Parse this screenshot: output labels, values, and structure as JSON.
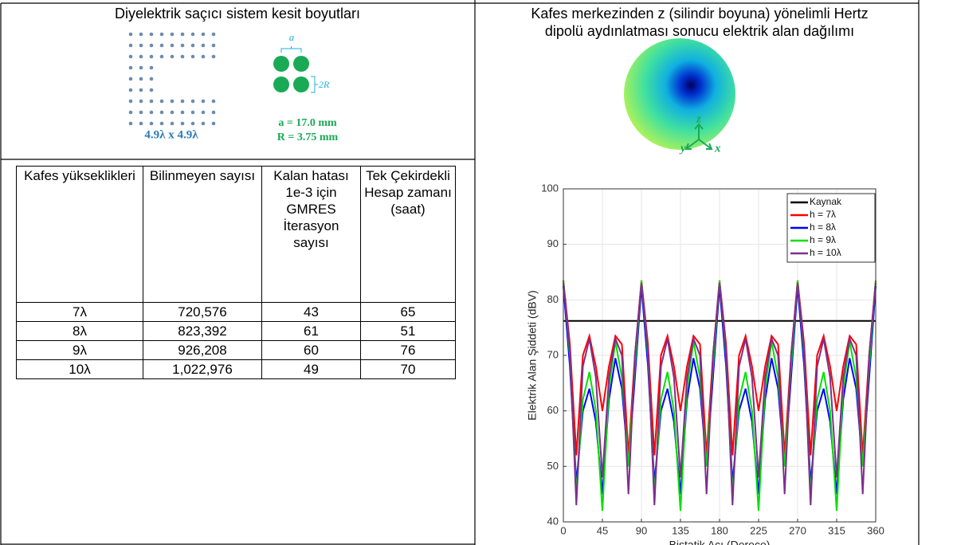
{
  "left": {
    "title": "Diyelektrik saçıcı sistem kesit boyutları",
    "diagram": {
      "size_label": "4.9λ x 4.9λ",
      "a_label": "a",
      "r_label": "2R",
      "a_value": "a = 17.0 mm",
      "r_value": "R = 3.75 mm"
    }
  },
  "table": {
    "headers": [
      "Kafes yükseklikleri",
      "Bilinmeyen sayısı",
      "Kalan hatası 1e-3 için GMRES İterasyon sayısı",
      "Tek Çekirdekli Hesap zamanı (saat)"
    ],
    "rows": [
      [
        "7λ",
        "720,576",
        43,
        65
      ],
      [
        "8λ",
        "823,392",
        61,
        51
      ],
      [
        "9λ",
        "926,208",
        60,
        76
      ],
      [
        "10λ",
        "1,022,976",
        49,
        70
      ]
    ]
  },
  "right": {
    "title": [
      "Kafes merkezinden z (silindir boyuna) yönelimli Hertz",
      "dipolü aydınlatması sonucu elektrik alan dağılımı"
    ],
    "axes_labels": [
      "y",
      "z",
      "x"
    ]
  },
  "chart_data": {
    "type": "line",
    "xlabel": "Bistatik Açı (Derece)",
    "ylabel": "Elektrik Alan Şiddeti (dBV)",
    "x": [
      0,
      7.5,
      15,
      22.5,
      30,
      37.5,
      45,
      52.5,
      60,
      67.5,
      75,
      82.5,
      90,
      97.5,
      105,
      112.5,
      120,
      127.5,
      135,
      142.5,
      150,
      157.5,
      165,
      172.5,
      180,
      187.5,
      195,
      202.5,
      210,
      217.5,
      225,
      232.5,
      240,
      247.5,
      255,
      262.5,
      270,
      277.5,
      285,
      292.5,
      300,
      307.5,
      315,
      322.5,
      330,
      337.5,
      345,
      352.5,
      360
    ],
    "xlim": [
      0,
      360
    ],
    "xticks": [
      0,
      45,
      90,
      135,
      180,
      225,
      270,
      315,
      360
    ],
    "ylim": [
      40,
      100
    ],
    "yticks": [
      40,
      50,
      60,
      70,
      80,
      90,
      100
    ],
    "grid": true,
    "legend": "upper right",
    "series": [
      {
        "name": "Kaynak",
        "color": "#000000",
        "values": [
          76.2,
          76.2,
          76.2,
          76.2,
          76.2,
          76.2,
          76.2,
          76.2,
          76.2,
          76.2,
          76.2,
          76.2,
          76.2,
          76.2,
          76.2,
          76.2,
          76.2,
          76.2,
          76.2,
          76.2,
          76.2,
          76.2,
          76.2,
          76.2,
          76.2,
          76.2,
          76.2,
          76.2,
          76.2,
          76.2,
          76.2,
          76.2,
          76.2,
          76.2,
          76.2,
          76.2,
          76.2,
          76.2,
          76.2,
          76.2,
          76.2,
          76.2,
          76.2,
          76.2,
          76.2,
          76.2,
          76.2,
          76.2,
          76.2
        ]
      },
      {
        "name": "h = 7λ",
        "color": "#ff0000",
        "values": [
          83.5,
          72,
          52,
          70,
          73.5,
          68,
          60,
          68,
          73.5,
          72,
          52,
          70,
          83.5,
          72,
          52,
          70,
          73.5,
          68,
          60,
          68,
          73.5,
          72,
          52,
          70,
          83.5,
          72,
          52,
          70,
          73.5,
          68,
          60,
          68,
          73.5,
          72,
          52,
          70,
          83.5,
          72,
          52,
          70,
          73.5,
          68,
          60,
          68,
          73.5,
          72,
          52,
          70,
          83.5
        ]
      },
      {
        "name": "h = 8λ",
        "color": "#0000ff",
        "values": [
          82.5,
          68,
          47,
          60,
          64,
          58,
          45,
          62,
          69.5,
          64,
          50,
          66,
          82.5,
          68,
          47,
          60,
          64,
          58,
          45,
          62,
          69.5,
          64,
          50,
          66,
          82.5,
          68,
          47,
          60,
          64,
          58,
          45,
          62,
          69.5,
          64,
          50,
          66,
          82.5,
          68,
          47,
          60,
          64,
          58,
          45,
          62,
          69.5,
          64,
          50,
          66,
          82.5
        ]
      },
      {
        "name": "h = 9λ",
        "color": "#00e000",
        "values": [
          83.5,
          70,
          45,
          62,
          67,
          60,
          42,
          64,
          72.5,
          66,
          50,
          68,
          83.5,
          70,
          45,
          62,
          67,
          60,
          42,
          64,
          72.5,
          66,
          50,
          68,
          83.5,
          70,
          45,
          62,
          67,
          60,
          42,
          64,
          72.5,
          66,
          50,
          68,
          83.5,
          70,
          45,
          62,
          67,
          60,
          42,
          64,
          72.5,
          66,
          50,
          68,
          83.5
        ]
      },
      {
        "name": "h = 10λ",
        "color": "#7e2f8e",
        "values": [
          83,
          71,
          43,
          68,
          73,
          66,
          48,
          66,
          73,
          70,
          45,
          70,
          83,
          71,
          43,
          68,
          73,
          66,
          48,
          66,
          73,
          70,
          45,
          70,
          83,
          71,
          43,
          68,
          73,
          66,
          48,
          66,
          73,
          70,
          45,
          70,
          83,
          71,
          43,
          68,
          73,
          66,
          48,
          66,
          73,
          70,
          45,
          70,
          83
        ]
      }
    ]
  }
}
